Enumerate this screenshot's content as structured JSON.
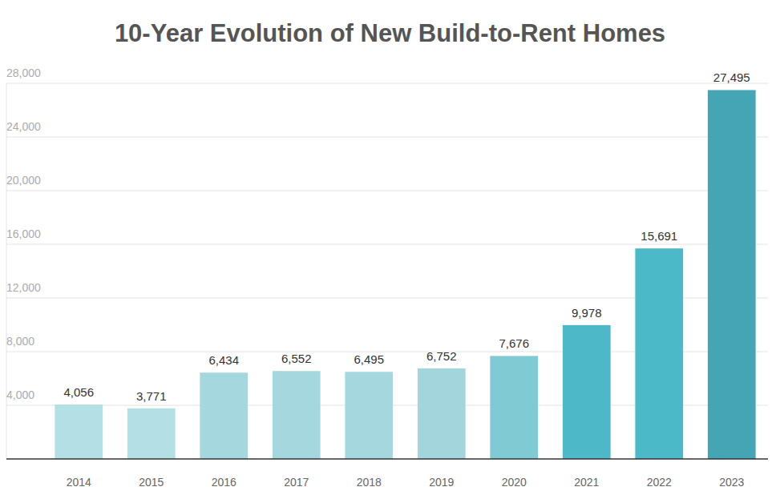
{
  "chart_data": {
    "type": "bar",
    "title": "10-Year Evolution of New Build-to-Rent Homes",
    "categories": [
      "2014",
      "2015",
      "2016",
      "2017",
      "2018",
      "2019",
      "2020",
      "2021",
      "2022",
      "2023"
    ],
    "values": [
      4056,
      3771,
      6434,
      6552,
      6495,
      6752,
      7676,
      9978,
      15691,
      27495
    ],
    "value_labels": [
      "4,056",
      "3,771",
      "6,434",
      "6,552",
      "6,495",
      "6,752",
      "7,676",
      "9,978",
      "15,691",
      "27,495"
    ],
    "colors": [
      "#b3e0e5",
      "#b3e0e5",
      "#a5d7de",
      "#a5d7de",
      "#a5d7de",
      "#a3d5dc",
      "#80cad4",
      "#4db8c8",
      "#4bb9c8",
      "#44a5b5"
    ],
    "ylim": [
      0,
      28000
    ],
    "yticks": [
      {
        "value": 4000,
        "label": "4,000"
      },
      {
        "value": 8000,
        "label": "8,000"
      },
      {
        "value": 12000,
        "label": "12,000"
      },
      {
        "value": 16000,
        "label": "16,000"
      },
      {
        "value": 20000,
        "label": "20,000"
      },
      {
        "value": 24000,
        "label": "24,000"
      },
      {
        "value": 28000,
        "label": "28,000"
      }
    ],
    "grid": true,
    "data_labels": true
  }
}
